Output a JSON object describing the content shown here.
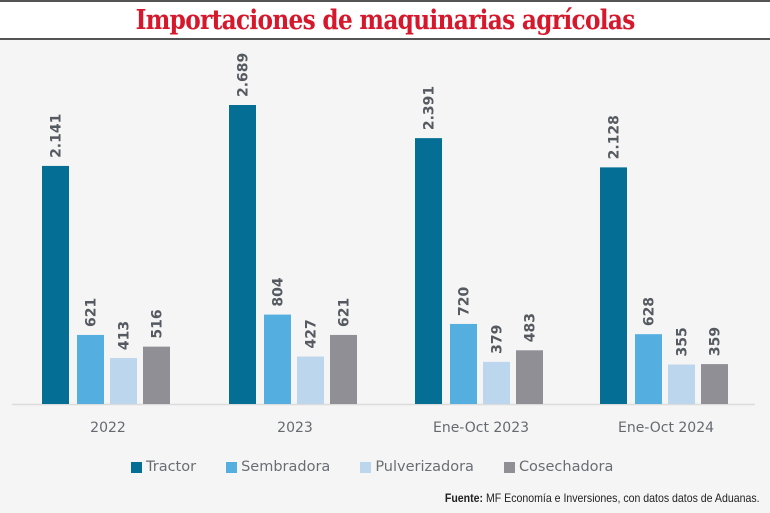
{
  "chart_data": {
    "type": "bar",
    "title": "Importaciones de maquinarias agrícolas",
    "categories": [
      "2022",
      "2023",
      "Ene-Oct 2023",
      "Ene-Oct 2024"
    ],
    "series": [
      {
        "name": "Tractor",
        "color": "#046e94",
        "values": [
          2141,
          2689,
          2391,
          2128
        ],
        "labels": [
          "2.141",
          "2.689",
          "2.391",
          "2.128"
        ]
      },
      {
        "name": "Sembradora",
        "color": "#54afe0",
        "values": [
          621,
          804,
          720,
          628
        ],
        "labels": [
          "621",
          "804",
          "720",
          "628"
        ]
      },
      {
        "name": "Pulverizadora",
        "color": "#bcd6ee",
        "values": [
          413,
          427,
          379,
          355
        ],
        "labels": [
          "413",
          "427",
          "379",
          "355"
        ]
      },
      {
        "name": "Cosechadora",
        "color": "#908f95",
        "values": [
          516,
          621,
          483,
          359
        ],
        "labels": [
          "516",
          "621",
          "483",
          "359"
        ]
      }
    ],
    "xlabel": "",
    "ylabel": "",
    "ylim": [
      0,
      2700
    ],
    "grid": false,
    "legend_position": "bottom",
    "data_labels": "vertical-above-bars"
  },
  "source": {
    "label": "Fuente:",
    "text": " MF Economía e Inversiones, con datos datos de Aduanas."
  }
}
